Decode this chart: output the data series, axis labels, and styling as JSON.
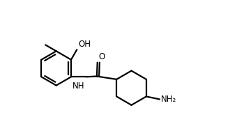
{
  "background": "#ffffff",
  "line_color": "#000000",
  "line_width": 1.6,
  "font_size": 8.5,
  "fig_width": 3.4,
  "fig_height": 1.88,
  "dpi": 100,
  "xlim": [
    0.0,
    8.5
  ],
  "ylim": [
    0.5,
    5.2
  ]
}
